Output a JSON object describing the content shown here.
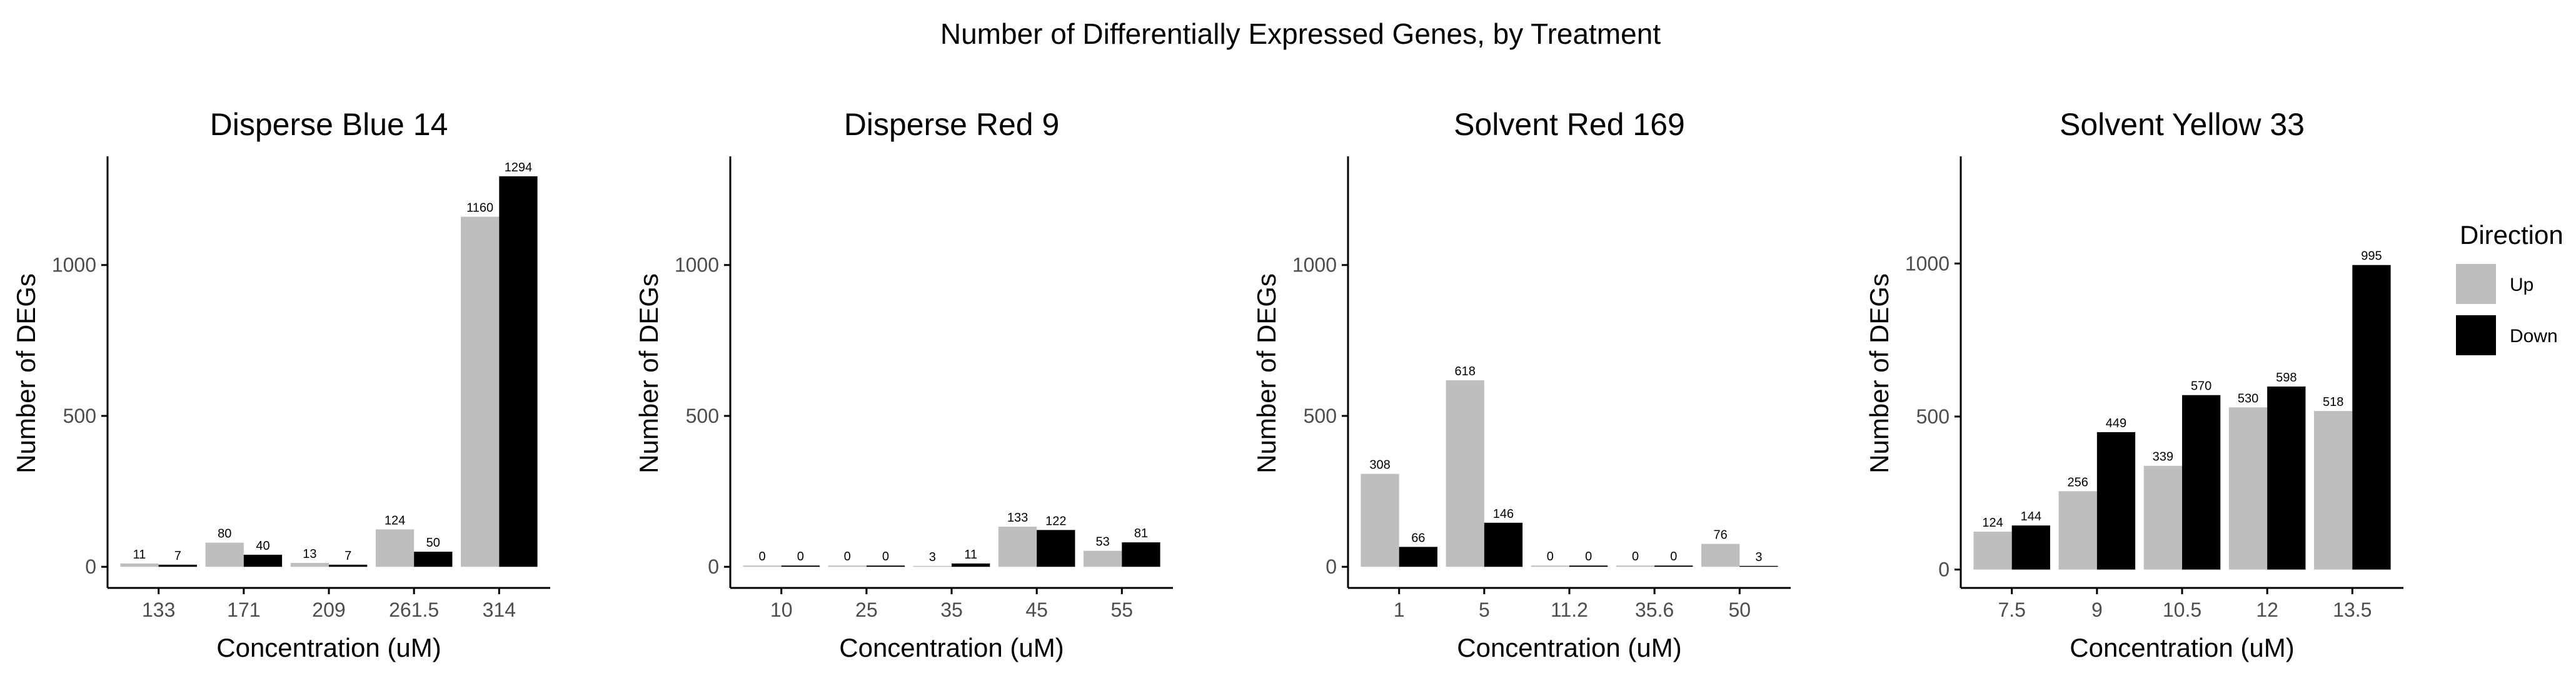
{
  "figure": {
    "title": "Number of Differentially Expressed Genes, by Treatment"
  },
  "colors": {
    "Up": "#bebebe",
    "Down": "#000000",
    "axis": "#000000",
    "tick_text": "#4d4d4d"
  },
  "legend": {
    "title": "Direction",
    "items": [
      "Up",
      "Down"
    ]
  },
  "chart_data": [
    {
      "type": "bar",
      "title": "Disperse Blue 14",
      "xlabel": "Concentration (uM)",
      "ylabel": "Number of DEGs",
      "categories": [
        "133",
        "171",
        "209",
        "261.5",
        "314"
      ],
      "series": [
        {
          "name": "Up",
          "values": [
            11,
            80,
            13,
            124,
            1160
          ]
        },
        {
          "name": "Down",
          "values": [
            7,
            40,
            7,
            50,
            1294
          ]
        }
      ],
      "yticks": [
        0,
        500,
        1000
      ],
      "ylim": [
        -70,
        1360
      ]
    },
    {
      "type": "bar",
      "title": "Disperse Red 9",
      "xlabel": "Concentration (uM)",
      "ylabel": "Number of DEGs",
      "categories": [
        "10",
        "25",
        "35",
        "45",
        "55"
      ],
      "series": [
        {
          "name": "Up",
          "values": [
            0,
            0,
            3,
            133,
            53
          ]
        },
        {
          "name": "Down",
          "values": [
            0,
            0,
            11,
            122,
            81
          ]
        }
      ],
      "yticks": [
        0,
        500,
        1000
      ],
      "ylim": [
        -70,
        1360
      ]
    },
    {
      "type": "bar",
      "title": "Solvent Red 169",
      "xlabel": "Concentration (uM)",
      "ylabel": "Number of DEGs",
      "categories": [
        "1",
        "5",
        "11.2",
        "35.6",
        "50"
      ],
      "series": [
        {
          "name": "Up",
          "values": [
            308,
            618,
            0,
            0,
            76
          ]
        },
        {
          "name": "Down",
          "values": [
            66,
            146,
            0,
            0,
            3
          ]
        }
      ],
      "yticks": [
        0,
        500,
        1000
      ],
      "ylim": [
        -70,
        1360
      ]
    },
    {
      "type": "bar",
      "title": "Solvent Yellow 33",
      "xlabel": "Concentration (uM)",
      "ylabel": "Number of DEGs",
      "categories": [
        "7.5",
        "9",
        "10.5",
        "12",
        "13.5"
      ],
      "series": [
        {
          "name": "Up",
          "values": [
            124,
            256,
            339,
            530,
            518
          ]
        },
        {
          "name": "Down",
          "values": [
            144,
            449,
            570,
            598,
            995
          ]
        }
      ],
      "yticks": [
        0,
        500,
        1000
      ],
      "ylim": [
        -60,
        1350
      ]
    }
  ]
}
